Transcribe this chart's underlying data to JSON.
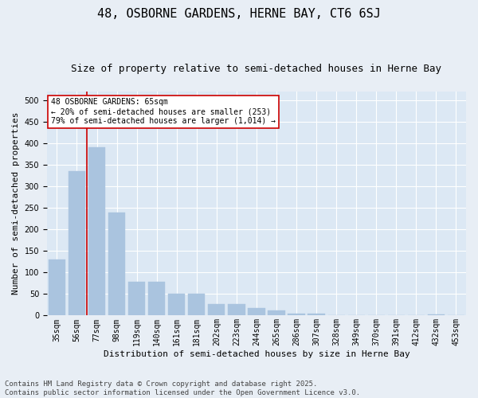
{
  "title": "48, OSBORNE GARDENS, HERNE BAY, CT6 6SJ",
  "subtitle": "Size of property relative to semi-detached houses in Herne Bay",
  "xlabel": "Distribution of semi-detached houses by size in Herne Bay",
  "ylabel": "Number of semi-detached properties",
  "categories": [
    "35sqm",
    "56sqm",
    "77sqm",
    "98sqm",
    "119sqm",
    "140sqm",
    "161sqm",
    "181sqm",
    "202sqm",
    "223sqm",
    "244sqm",
    "265sqm",
    "286sqm",
    "307sqm",
    "328sqm",
    "349sqm",
    "370sqm",
    "391sqm",
    "412sqm",
    "432sqm",
    "453sqm"
  ],
  "values": [
    130,
    335,
    390,
    240,
    78,
    78,
    50,
    50,
    27,
    27,
    18,
    12,
    5,
    5,
    1,
    0,
    0,
    0,
    0,
    3,
    0
  ],
  "bar_color": "#aac4df",
  "bar_edge_color": "#aac4df",
  "marker_line_color": "#cc0000",
  "annotation_title": "48 OSBORNE GARDENS: 65sqm",
  "annotation_line1": "← 20% of semi-detached houses are smaller (253)",
  "annotation_line2": "79% of semi-detached houses are larger (1,014) →",
  "annotation_box_color": "#cc0000",
  "background_color": "#e8eef5",
  "plot_bg_color": "#dce8f4",
  "footer_line1": "Contains HM Land Registry data © Crown copyright and database right 2025.",
  "footer_line2": "Contains public sector information licensed under the Open Government Licence v3.0.",
  "ylim": [
    0,
    520
  ],
  "title_fontsize": 11,
  "subtitle_fontsize": 9,
  "xlabel_fontsize": 8,
  "ylabel_fontsize": 8,
  "tick_fontsize": 7,
  "annotation_fontsize": 7,
  "footer_fontsize": 6.5
}
